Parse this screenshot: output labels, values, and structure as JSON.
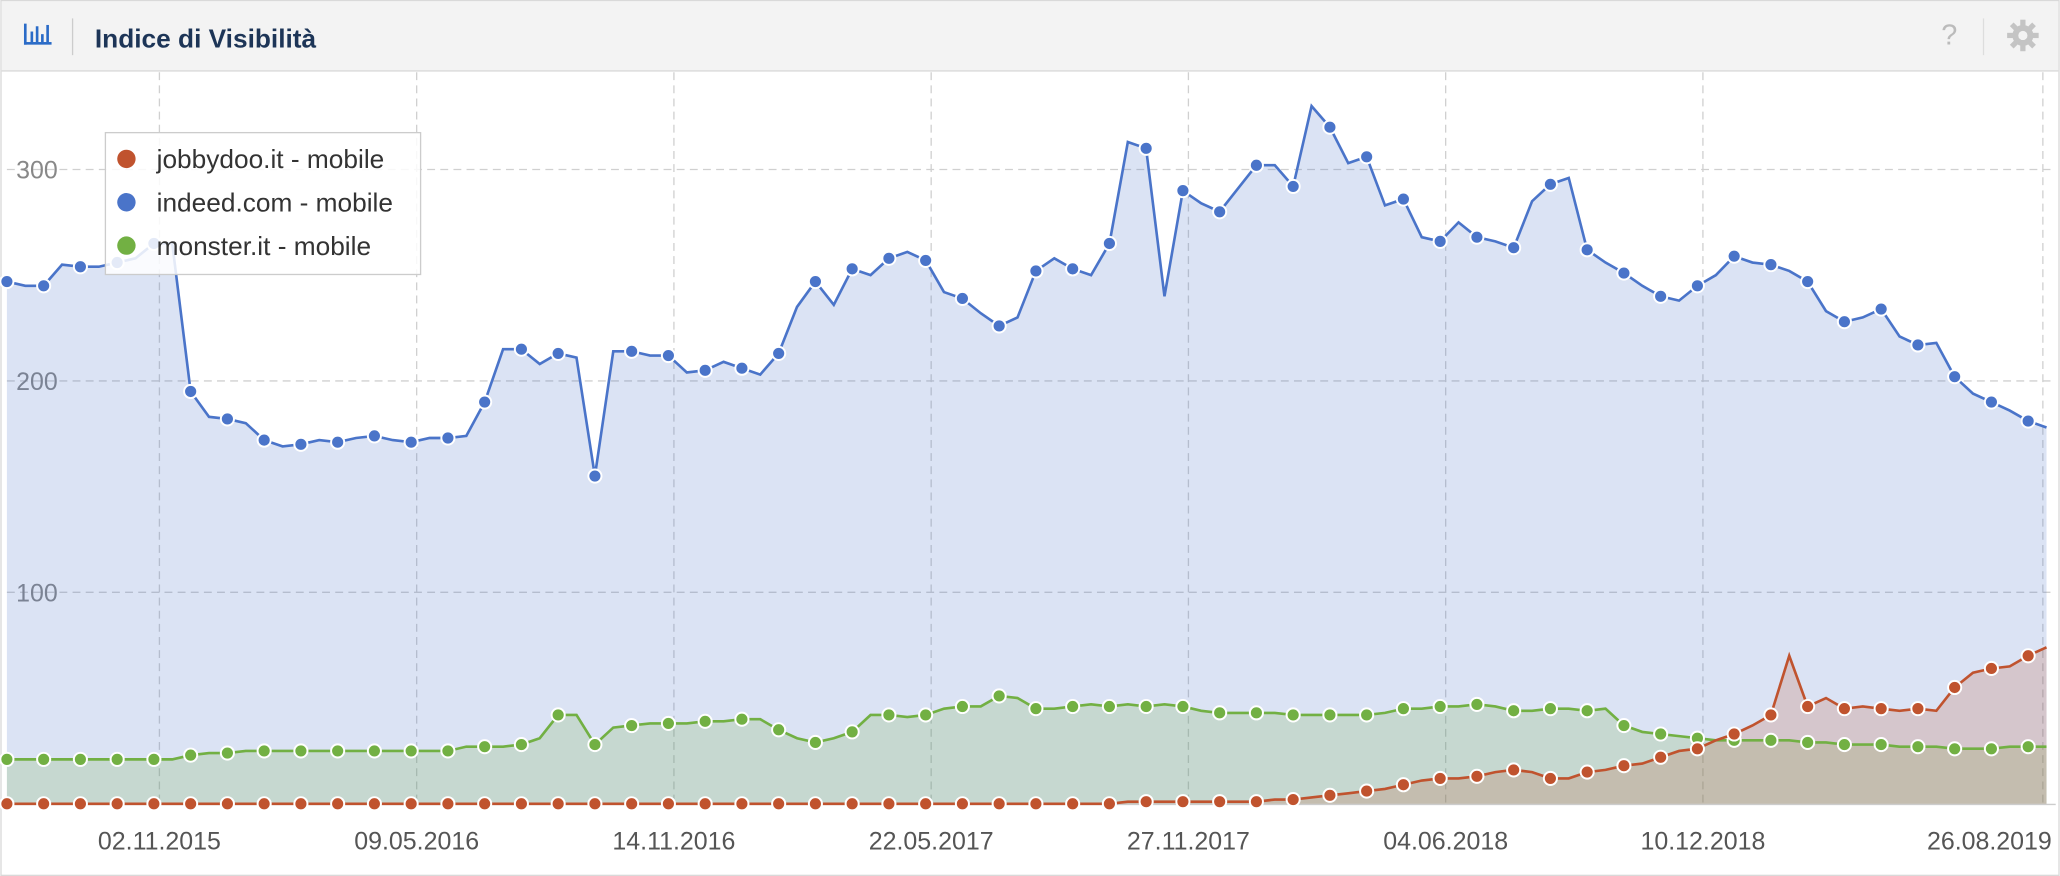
{
  "header": {
    "title": "Indice di Visibilità",
    "help": "?"
  },
  "chart_data": {
    "type": "area-line",
    "grid": true,
    "legend": "upper left",
    "x": [
      0,
      2,
      4,
      6,
      8,
      10,
      12,
      14,
      16,
      18,
      20,
      22,
      24,
      26,
      28,
      30,
      32,
      34,
      36,
      38,
      40,
      42,
      44,
      46,
      48,
      50,
      52,
      54,
      56,
      58,
      60,
      62,
      64,
      66,
      68,
      70,
      72,
      74,
      76,
      78,
      80,
      82,
      84,
      86,
      88,
      90,
      92,
      94,
      96,
      98,
      100,
      102,
      104,
      106,
      108,
      110,
      112,
      114,
      116,
      118,
      120,
      122,
      124,
      126,
      128,
      130,
      132,
      134,
      136,
      138,
      140,
      142,
      144,
      146,
      148,
      150,
      152,
      154,
      156,
      158,
      160,
      162,
      164,
      166,
      168,
      170,
      172,
      174,
      176,
      178,
      180,
      182,
      184,
      186,
      188,
      190,
      192,
      194,
      196,
      198,
      200,
      202,
      204,
      206,
      208,
      210,
      212,
      214,
      216,
      218,
      220,
      222
    ],
    "xlim": [
      0,
      223
    ],
    "xticks": [
      {
        "value": 16.6,
        "label": "02.11.2015"
      },
      {
        "value": 44.6,
        "label": "09.05.2016"
      },
      {
        "value": 72.6,
        "label": "14.11.2016"
      },
      {
        "value": 100.6,
        "label": "22.05.2017"
      },
      {
        "value": 128.6,
        "label": "27.11.2017"
      },
      {
        "value": 156.6,
        "label": "04.06.2018"
      },
      {
        "value": 184.6,
        "label": "10.12.2018"
      },
      {
        "value": 221.6,
        "label": "26.08.2019"
      }
    ],
    "ylim": [
      0,
      346
    ],
    "yticks": [
      100,
      200,
      300
    ],
    "series": [
      {
        "name": "jobbydoo.it - mobile",
        "color": "#c0532e",
        "values": [
          0,
          0,
          0,
          0,
          0,
          0,
          0,
          0,
          0,
          0,
          0,
          0,
          0,
          0,
          0,
          0,
          0,
          0,
          0,
          0,
          0,
          0,
          0,
          0,
          0,
          0,
          0,
          0,
          0,
          0,
          0,
          0,
          0,
          0,
          0,
          0,
          0,
          0,
          0,
          0,
          0,
          0,
          0,
          0,
          0,
          0,
          0,
          0,
          0,
          0,
          0,
          0,
          0,
          0,
          0,
          0,
          0,
          0,
          0,
          0,
          0,
          1,
          1,
          1,
          1,
          1,
          1,
          1,
          1,
          2,
          2,
          3,
          4,
          5,
          6,
          7,
          9,
          11,
          12,
          12,
          13,
          15,
          16,
          15,
          12,
          12,
          15,
          16,
          18,
          19,
          22,
          25,
          26,
          30,
          33,
          37,
          42,
          70,
          46,
          50,
          45,
          46,
          45,
          44,
          45,
          44,
          55,
          62,
          64,
          65,
          70,
          74
        ]
      },
      {
        "name": "indeed.com - mobile",
        "color": "#4a74c9",
        "values": [
          247,
          245,
          245,
          255,
          254,
          254,
          256,
          258,
          265,
          265,
          195,
          183,
          182,
          180,
          172,
          169,
          170,
          172,
          171,
          173,
          174,
          172,
          171,
          173,
          173,
          174,
          190,
          215,
          215,
          208,
          213,
          211,
          155,
          214,
          214,
          212,
          212,
          204,
          205,
          209,
          206,
          203,
          213,
          235,
          247,
          236,
          253,
          250,
          258,
          261,
          257,
          242,
          239,
          232,
          226,
          230,
          252,
          258,
          253,
          250,
          265,
          313,
          310,
          240,
          290,
          284,
          280,
          291,
          302,
          302,
          292,
          330,
          320,
          303,
          306,
          283,
          286,
          268,
          266,
          275,
          268,
          266,
          263,
          285,
          293,
          296,
          262,
          256,
          251,
          245,
          240,
          238,
          245,
          250,
          259,
          256,
          255,
          252,
          247,
          233,
          228,
          230,
          234,
          221,
          217,
          218,
          202,
          194,
          190,
          186,
          181,
          178
        ]
      },
      {
        "name": "monster.it - mobile",
        "color": "#72b043",
        "values": [
          21,
          21,
          21,
          21,
          21,
          21,
          21,
          21,
          21,
          21,
          23,
          24,
          24,
          25,
          25,
          25,
          25,
          25,
          25,
          25,
          25,
          25,
          25,
          25,
          25,
          27,
          27,
          27,
          28,
          31,
          42,
          42,
          28,
          36,
          37,
          38,
          38,
          38,
          39,
          39,
          40,
          40,
          35,
          31,
          29,
          31,
          34,
          42,
          42,
          41,
          42,
          45,
          46,
          46,
          51,
          50,
          45,
          45,
          46,
          47,
          46,
          47,
          46,
          47,
          46,
          44,
          43,
          43,
          43,
          43,
          42,
          42,
          42,
          42,
          42,
          43,
          45,
          45,
          46,
          46,
          47,
          46,
          44,
          44,
          45,
          45,
          44,
          45,
          37,
          34,
          33,
          32,
          31,
          30,
          30,
          30,
          30,
          30,
          29,
          29,
          28,
          28,
          28,
          27,
          27,
          27,
          26,
          26,
          26,
          27,
          27,
          27
        ]
      }
    ]
  }
}
